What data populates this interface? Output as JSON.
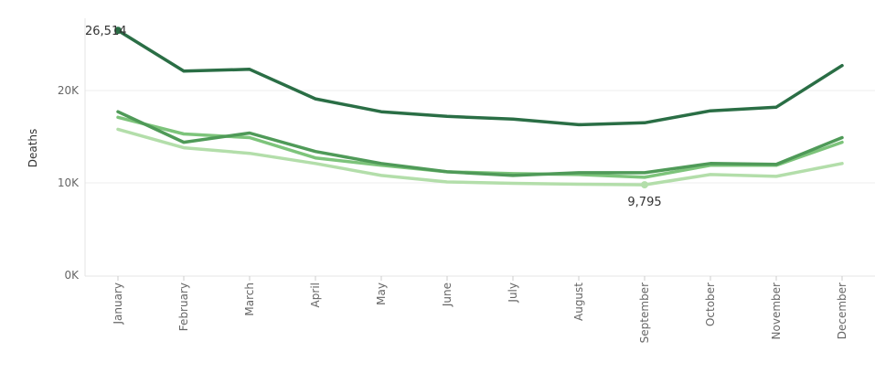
{
  "chart_data": {
    "type": "line",
    "title": "",
    "xlabel": "",
    "ylabel": "Deaths",
    "categories": [
      "January",
      "February",
      "March",
      "April",
      "May",
      "June",
      "July",
      "August",
      "September",
      "October",
      "November",
      "December"
    ],
    "ylim": [
      0,
      28000
    ],
    "y_ticks": [
      {
        "value": 0,
        "label": "0K"
      },
      {
        "value": 10000,
        "label": "10K"
      },
      {
        "value": 20000,
        "label": "20K"
      }
    ],
    "grid": true,
    "legend": "none",
    "series": [
      {
        "color": "#2a6e45",
        "values": [
          26514,
          22100,
          22300,
          19100,
          17700,
          17200,
          16900,
          16300,
          16500,
          17800,
          18200,
          22700
        ]
      },
      {
        "color": "#4f9a58",
        "values": [
          17700,
          14400,
          15400,
          13400,
          12100,
          11200,
          10800,
          11100,
          11100,
          12100,
          12000,
          14900
        ]
      },
      {
        "color": "#7dc47b",
        "values": [
          17100,
          15300,
          14900,
          12700,
          11900,
          11200,
          11000,
          10900,
          10600,
          11900,
          11900,
          14400
        ]
      },
      {
        "color": "#b3deaa",
        "values": [
          15800,
          13800,
          13200,
          12100,
          10800,
          10100,
          9950,
          9850,
          9795,
          10900,
          10700,
          12100
        ]
      }
    ],
    "annotations": [
      {
        "series": 0,
        "index": 0,
        "text": "26,514"
      },
      {
        "series": 3,
        "index": 8,
        "text": "9,795"
      }
    ]
  }
}
